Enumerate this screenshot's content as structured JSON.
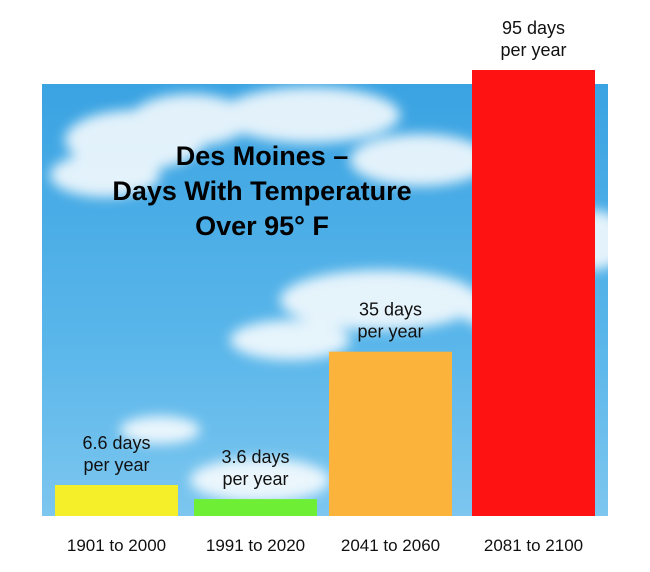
{
  "chart_data": {
    "type": "bar",
    "title": "Des Moines –\nDays With Temperature\nOver 95° F",
    "categories": [
      "1901 to 2000",
      "1991 to 2020",
      "2041 to 2060",
      "2081 to 2100"
    ],
    "values": [
      6.6,
      3.6,
      35,
      95
    ],
    "data_labels": [
      "6.6 days\nper year",
      "3.6 days\nper year",
      "35 days\nper year",
      "95 days\nper year"
    ],
    "colors": [
      "#f5ef2a",
      "#6eee35",
      "#fbb33c",
      "#fe1212"
    ],
    "xlabel": "",
    "ylabel": "",
    "ylim": [
      0,
      95
    ],
    "grid": false,
    "legend": "none",
    "background": "sky-with-clouds"
  }
}
